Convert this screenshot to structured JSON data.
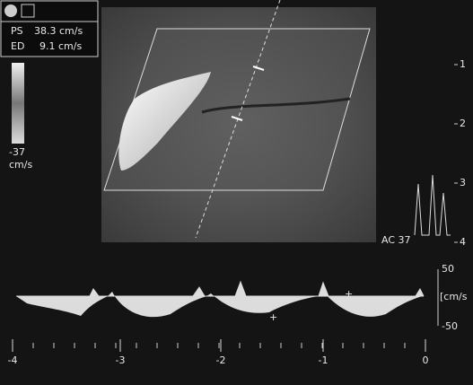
{
  "info_box": {
    "ps_label": "PS",
    "ps_value": "38.3 cm/s",
    "ed_label": "ED",
    "ed_value": "9.1 cm/s"
  },
  "color_bar": {
    "min_label": "-37",
    "unit": "cm/s"
  },
  "depth_scale": [
    "1",
    "2",
    "3",
    "4"
  ],
  "gain_label": "AC 37",
  "velocity_scale": {
    "top": "50",
    "unit": "[cm/s",
    "bottom": "-50"
  },
  "time_axis": [
    "-4",
    "-3",
    "-2",
    "-1",
    "0"
  ]
}
